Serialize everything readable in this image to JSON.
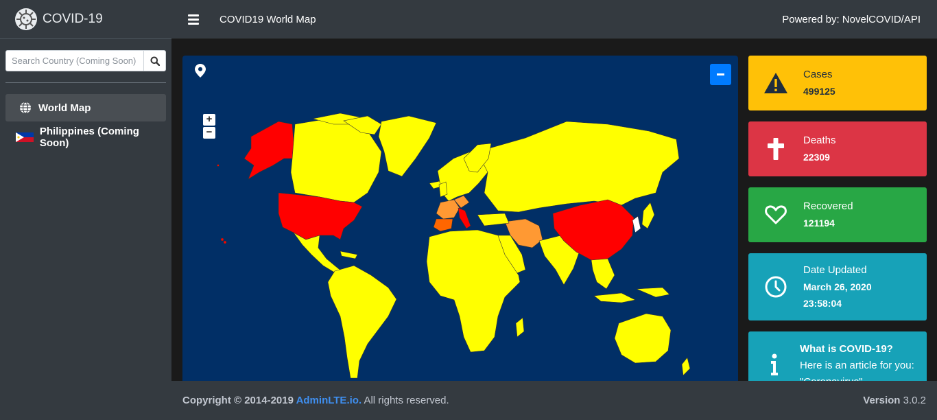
{
  "brand": {
    "name": "COVID-19"
  },
  "search": {
    "placeholder": "Search Country (Coming Soon)"
  },
  "sidebar": {
    "items": [
      {
        "label": "World Map",
        "icon": "globe-icon"
      },
      {
        "label": "Philippines (Coming Soon)",
        "icon": "philippines-flag-icon"
      }
    ]
  },
  "header": {
    "title": "COVID19 World Map",
    "powered": "Powered by: NovelCOVID/API"
  },
  "map": {
    "zoom_in": "+",
    "zoom_out": "−"
  },
  "stats": {
    "cases": {
      "label": "Cases",
      "value": "499125",
      "color": "#ffc107"
    },
    "deaths": {
      "label": "Deaths",
      "value": "22309",
      "color": "#dc3545"
    },
    "recovered": {
      "label": "Recovered",
      "value": "121194",
      "color": "#28a745"
    },
    "date": {
      "label": "Date Updated",
      "date": "March 26, 2020",
      "time": "23:58:04",
      "color": "#17a2b8"
    },
    "info": {
      "title": "What is COVID-19?",
      "text": "Here is an article for you:",
      "link": "\"Coronavirus\""
    }
  },
  "footer": {
    "copyright": "Copyright © 2014-2019 ",
    "link": "AdminLTE.io.",
    "rights": " All rights reserved.",
    "version_label": "Version",
    "version": " 3.0.2"
  }
}
